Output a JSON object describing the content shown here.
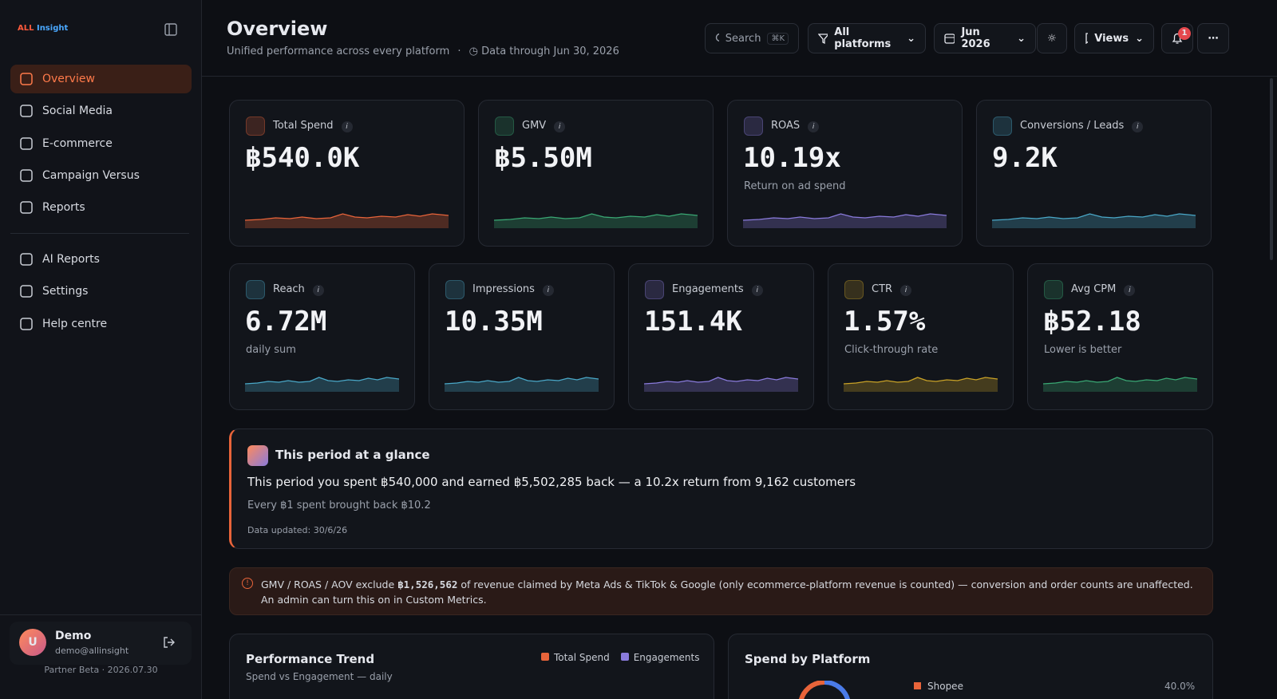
{
  "sidebar": {
    "logo_a": "ALL",
    "logo_b": "Insight",
    "nav": [
      "Overview",
      "Social Media",
      "E-commerce",
      "Campaign Versus",
      "Reports"
    ],
    "nav_secondary": [
      "AI Reports",
      "Settings",
      "Help centre"
    ],
    "user": {
      "initial": "U",
      "name": "Demo",
      "email": "demo@allinsight"
    },
    "footer": "Partner Beta · 2026.07.30"
  },
  "header": {
    "title": "Overview",
    "subtitle": "Unified performance across every platform",
    "separator": "·",
    "data_through": "Data through Jun 30, 2026",
    "search": "Search",
    "shortcut": "⌘K",
    "platform_filter": "All platforms",
    "period": "Jun 2026",
    "views": "Views",
    "notifications": "1"
  },
  "kpis_primary": [
    {
      "label": "Total Spend",
      "info": "i",
      "value": "฿540.0K"
    },
    {
      "label": "GMV",
      "info": "i",
      "value": "฿5.50M"
    },
    {
      "label": "ROAS",
      "info": "i",
      "value": "10.19x",
      "note": "Return on ad spend"
    },
    {
      "label": "Conversions / Leads",
      "info": "i",
      "value": "9.2K"
    }
  ],
  "kpis_secondary": [
    {
      "label": "Reach",
      "info": "i",
      "value": "6.72M",
      "note": "daily sum"
    },
    {
      "label": "Impressions",
      "info": "i",
      "value": "10.35M"
    },
    {
      "label": "Engagements",
      "info": "i",
      "value": "151.4K"
    },
    {
      "label": "CTR",
      "info": "i",
      "value": "1.57%",
      "note": "Click-through rate"
    },
    {
      "label": "Avg CPM",
      "info": "i",
      "value": "฿52.18",
      "note": "Lower is better"
    }
  ],
  "glance": {
    "title": "This period at a glance",
    "summary": "This period you spent ฿540,000 and earned ฿5,502,285 back — a 10.2x return from 9,162 customers",
    "detail": "Every ฿1 spent brought back ฿10.2",
    "updated": "Data updated: 30/6/26"
  },
  "notice": {
    "before": "GMV / ROAS / AOV exclude ",
    "amount": "฿1,526,562",
    "after": " of revenue claimed by Meta Ads & TikTok & Google (only ecommerce-platform revenue is counted) — conversion and order counts are unaffected. An admin can turn this on in Custom Metrics."
  },
  "trend": {
    "title": "Performance Trend",
    "subtitle": "Spend vs Engagement — daily",
    "legend": [
      "Total Spend",
      "Engagements"
    ]
  },
  "spend_by_platform": {
    "title": "Spend by Platform",
    "items": [
      {
        "name": "Shopee",
        "share": "40.0%"
      }
    ]
  }
}
